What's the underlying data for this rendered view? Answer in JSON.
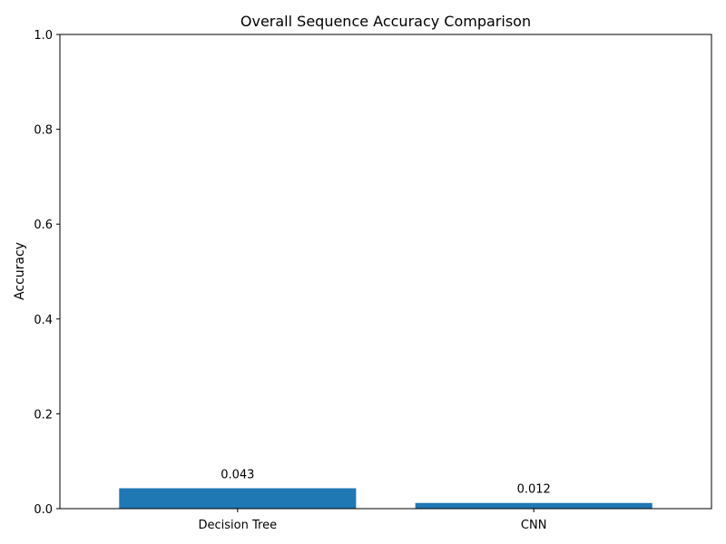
{
  "chart_data": {
    "type": "bar",
    "title": "Overall Sequence Accuracy Comparison",
    "xlabel": "",
    "ylabel": "Accuracy",
    "categories": [
      "Decision Tree",
      "CNN"
    ],
    "values": [
      0.043,
      0.012
    ],
    "data_labels": [
      "0.043",
      "0.012"
    ],
    "ylim": [
      0,
      1.0
    ],
    "yticks": [
      0.0,
      0.2,
      0.4,
      0.6,
      0.8,
      1.0
    ],
    "ytick_labels": [
      "0.0",
      "0.2",
      "0.4",
      "0.6",
      "0.8",
      "1.0"
    ],
    "bar_color": "#1f77b4",
    "grid": false,
    "legend": "none"
  }
}
